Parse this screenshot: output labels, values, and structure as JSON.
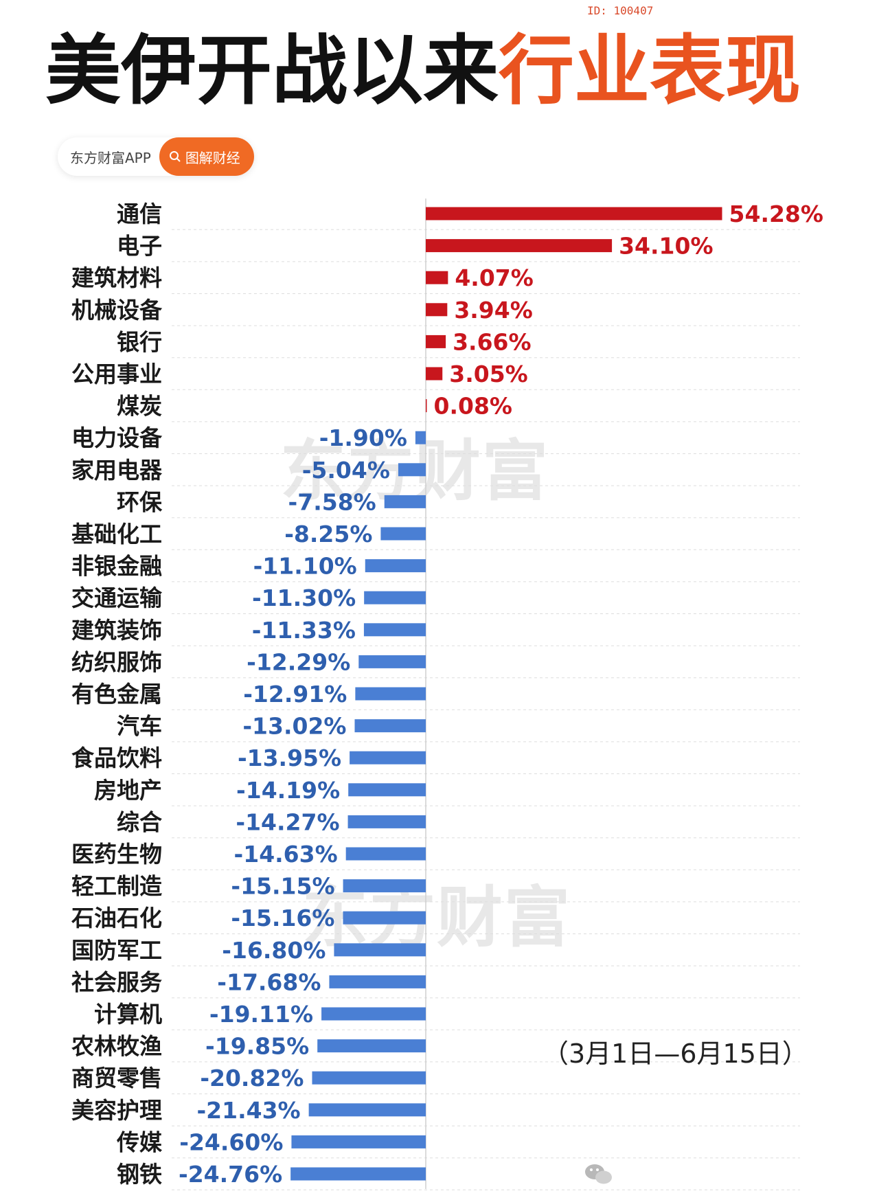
{
  "header": {
    "id_tag": "ID: 100407",
    "title_black": "美伊开战以来",
    "title_orange": "行业表现"
  },
  "source": {
    "app_name": "东方财富APP",
    "tag_label": "图解财经",
    "tag_icon": "search-icon"
  },
  "watermark": "东方财富",
  "date_note": "（3月1日—6月15日）",
  "colors": {
    "positive": "#c8161d",
    "negative": "#4a7fd4",
    "accent": "#e9531f"
  },
  "chart_data": {
    "type": "bar",
    "orientation": "horizontal",
    "title": "美伊开战以来行业表现",
    "categories": [
      "通信",
      "电子",
      "建筑材料",
      "机械设备",
      "银行",
      "公用事业",
      "煤炭",
      "电力设备",
      "家用电器",
      "环保",
      "基础化工",
      "非银金融",
      "交通运输",
      "建筑装饰",
      "纺织服饰",
      "有色金属",
      "汽车",
      "食品饮料",
      "房地产",
      "综合",
      "医药生物",
      "轻工制造",
      "石油石化",
      "国防军工",
      "社会服务",
      "计算机",
      "农林牧渔",
      "商贸零售",
      "美容护理",
      "传媒",
      "钢铁"
    ],
    "values": [
      54.28,
      34.1,
      4.07,
      3.94,
      3.66,
      3.05,
      0.08,
      -1.9,
      -5.04,
      -7.58,
      -8.25,
      -11.1,
      -11.3,
      -11.33,
      -12.29,
      -12.91,
      -13.02,
      -13.95,
      -14.19,
      -14.27,
      -14.63,
      -15.15,
      -15.16,
      -16.8,
      -17.68,
      -19.11,
      -19.85,
      -20.82,
      -21.43,
      -24.6,
      -24.76
    ],
    "labels": [
      "54.28%",
      "34.10%",
      "4.07%",
      "3.94%",
      "3.66%",
      "3.05%",
      "0.08%",
      "-1.90%",
      "-5.04%",
      "-7.58%",
      "-8.25%",
      "-11.10%",
      "-11.30%",
      "-11.33%",
      "-12.29%",
      "-12.91%",
      "-13.02%",
      "-13.95%",
      "-14.19%",
      "-14.27%",
      "-14.63%",
      "-15.15%",
      "-15.16%",
      "-16.80%",
      "-17.68%",
      "-19.11%",
      "-19.85%",
      "-20.82%",
      "-21.43%",
      "-24.60%",
      "-24.76%"
    ],
    "unit": "%",
    "grid": true
  }
}
